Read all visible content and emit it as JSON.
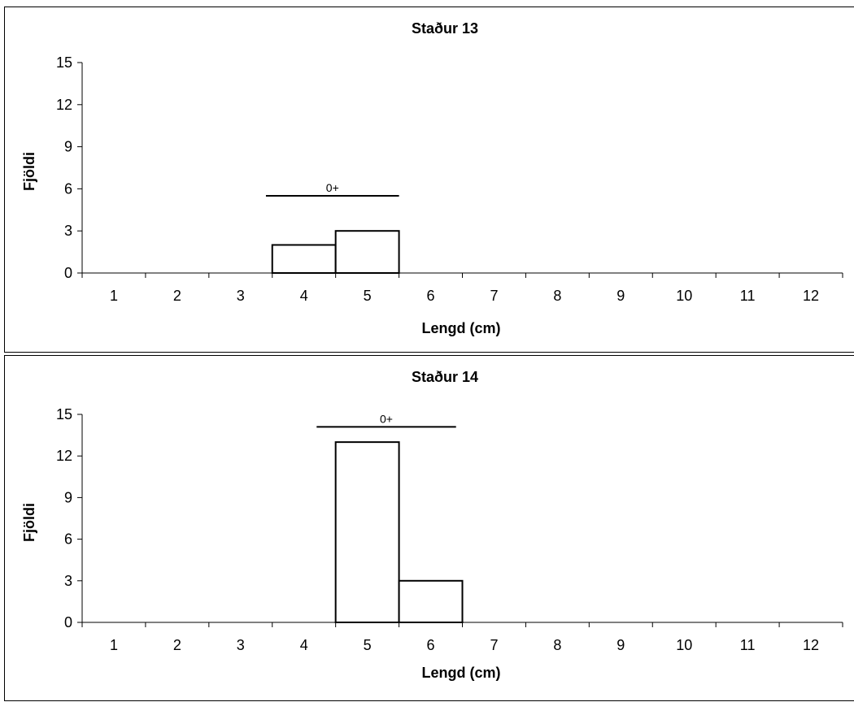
{
  "chart_data": [
    {
      "type": "bar",
      "title": "Staður 13",
      "xlabel": "Lengd (cm)",
      "ylabel": "Fjöldi",
      "categories": [
        "1",
        "2",
        "3",
        "4",
        "5",
        "6",
        "7",
        "8",
        "9",
        "10",
        "11",
        "12"
      ],
      "values": [
        0,
        0,
        0,
        2,
        3,
        0,
        0,
        0,
        0,
        0,
        0,
        0
      ],
      "ylim": [
        0,
        15
      ],
      "yticks": [
        "0",
        "3",
        "6",
        "9",
        "12",
        "15"
      ],
      "annotation": {
        "text": "0+",
        "x_from": 3.4,
        "x_to": 5.5,
        "y": 5.5
      },
      "grid": false,
      "legend": "none"
    },
    {
      "type": "bar",
      "title": "Staður 14",
      "xlabel": "Lengd (cm)",
      "ylabel": "Fjöldi",
      "categories": [
        "1",
        "2",
        "3",
        "4",
        "5",
        "6",
        "7",
        "8",
        "9",
        "10",
        "11",
        "12"
      ],
      "values": [
        0,
        0,
        0,
        0,
        13,
        3,
        0,
        0,
        0,
        0,
        0,
        0
      ],
      "ylim": [
        0,
        15
      ],
      "yticks": [
        "0",
        "3",
        "6",
        "9",
        "12",
        "15"
      ],
      "annotation": {
        "text": "0+",
        "x_from": 4.2,
        "x_to": 6.4,
        "y": 14.1
      },
      "grid": false,
      "legend": "none"
    }
  ]
}
